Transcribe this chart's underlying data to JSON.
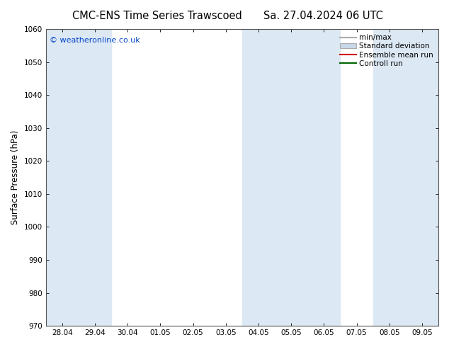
{
  "title_left": "CMC-ENS Time Series Trawscoed",
  "title_right": "Sa. 27.04.2024 06 UTC",
  "ylabel": "Surface Pressure (hPa)",
  "ylim": [
    970,
    1060
  ],
  "yticks": [
    970,
    980,
    990,
    1000,
    1010,
    1020,
    1030,
    1040,
    1050,
    1060
  ],
  "x_labels": [
    "28.04",
    "29.04",
    "30.04",
    "01.05",
    "02.05",
    "03.05",
    "04.05",
    "05.05",
    "06.05",
    "07.05",
    "08.05",
    "09.05"
  ],
  "x_positions": [
    0,
    1,
    2,
    3,
    4,
    5,
    6,
    7,
    8,
    9,
    10,
    11
  ],
  "shaded_ranges": [
    [
      0,
      1
    ],
    [
      6,
      7
    ],
    [
      8,
      8
    ],
    [
      10,
      11
    ]
  ],
  "band_color": "#dce8f3",
  "background_color": "#ffffff",
  "watermark": "© weatheronline.co.uk",
  "watermark_color": "#0044cc",
  "legend_items": [
    {
      "label": "min/max",
      "color": "#aaaaaa",
      "type": "line"
    },
    {
      "label": "Standard deviation",
      "color": "#c8d8e8",
      "type": "box"
    },
    {
      "label": "Ensemble mean run",
      "color": "#cc0000",
      "type": "line"
    },
    {
      "label": "Controll run",
      "color": "#006600",
      "type": "line"
    }
  ],
  "title_fontsize": 10.5,
  "tick_fontsize": 7.5,
  "ylabel_fontsize": 8.5,
  "watermark_fontsize": 8,
  "legend_fontsize": 7.5,
  "figsize": [
    6.34,
    4.9
  ],
  "dpi": 100
}
